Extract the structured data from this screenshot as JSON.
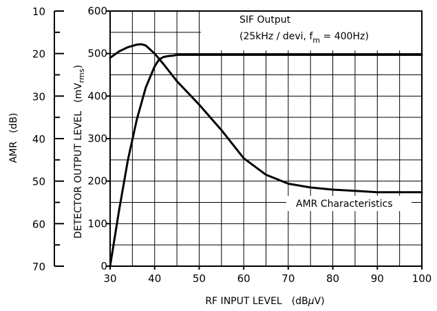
{
  "chart_data": {
    "type": "line",
    "title": "",
    "xlabel": "RF INPUT LEVEL (dBμV)",
    "xlabel_main": "RF INPUT LEVEL",
    "xlabel_unit_pre": "(dB",
    "xlabel_unit_mu": "μ",
    "xlabel_unit_post": "V)",
    "ylabel": "DETECTOR OUTPUT LEVEL (mVrms)",
    "ylabel_main": "DETECTOR OUTPUT LEVEL",
    "ylabel_unit_pre": "(mV",
    "ylabel_unit_sub": "rms",
    "ylabel_unit_post": ")",
    "y2label": "AMR (dB)",
    "y2label_main": "AMR",
    "y2label_unit": "(dB)",
    "xlim": [
      30,
      100
    ],
    "ylim": [
      0,
      600
    ],
    "y2lim": [
      10,
      70
    ],
    "y2_inverted": true,
    "grid": true,
    "x_ticks": [
      30,
      40,
      50,
      60,
      70,
      80,
      90,
      100
    ],
    "y_ticks": [
      0,
      100,
      200,
      300,
      400,
      500,
      600
    ],
    "y2_ticks": [
      10,
      20,
      30,
      40,
      50,
      60,
      70
    ],
    "annotations": {
      "sif_title": "SIF Output",
      "sif_params_pre": "(25kHz / devi, f",
      "sif_params_sub": "m",
      "sif_params_post": " = 400Hz)",
      "amr_label": "AMR Characteristics"
    },
    "series": [
      {
        "axis": "left",
        "x": [
          30,
          32,
          34,
          36,
          38,
          40,
          41,
          42,
          43,
          44,
          45,
          50,
          60,
          70,
          80,
          90,
          100
        ],
        "values": [
          0,
          130,
          250,
          345,
          420,
          470,
          486,
          492,
          494,
          495,
          497,
          497,
          497,
          497,
          497,
          497,
          497
        ]
      },
      {
        "axis": "right",
        "x": [
          30,
          32,
          34,
          36,
          37,
          38,
          40,
          42,
          45,
          50,
          55,
          60,
          65,
          70,
          75,
          80,
          85,
          90,
          100
        ],
        "values": [
          21.0,
          19.5,
          18.5,
          17.9,
          17.8,
          18.1,
          20.0,
          22.5,
          26.5,
          32.0,
          38.0,
          44.6,
          48.5,
          50.6,
          51.5,
          52.0,
          52.3,
          52.6,
          52.6
        ]
      }
    ]
  }
}
